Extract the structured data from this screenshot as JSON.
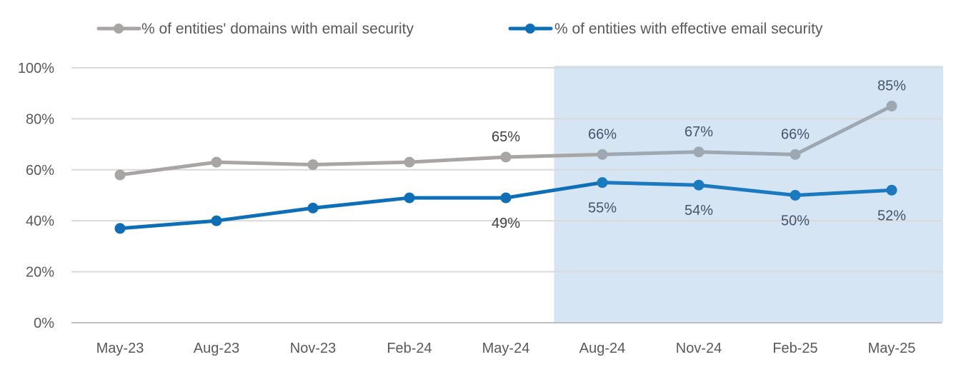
{
  "chart_data": {
    "type": "line",
    "title": "",
    "xlabel": "",
    "ylabel": "",
    "categories": [
      "May-23",
      "Aug-23",
      "Nov-23",
      "Feb-24",
      "May-24",
      "Aug-24",
      "Nov-24",
      "Feb-25",
      "May-25"
    ],
    "ylim": [
      0,
      100
    ],
    "yticks": [
      "0%",
      "20%",
      "40%",
      "60%",
      "80%",
      "100%"
    ],
    "grid": true,
    "legend_position": "top",
    "highlight_range": [
      "Aug-24",
      "May-25"
    ],
    "highlight_color": "#d6e5f4",
    "series": [
      {
        "name": "% of entities' domains with email security",
        "color": "#a8a5a5",
        "highlight_color": "#9ea8b2",
        "values": [
          58,
          63,
          62,
          63,
          65,
          66,
          67,
          66,
          85
        ],
        "data_labels": [
          null,
          null,
          null,
          null,
          "65%",
          "66%",
          "67%",
          "66%",
          "85%"
        ],
        "label_position": "above"
      },
      {
        "name": "% of entities with effective email security",
        "color": "#0f6fb6",
        "highlight_color": "#1a79bf",
        "values": [
          37,
          40,
          45,
          49,
          49,
          55,
          54,
          50,
          52
        ],
        "data_labels": [
          null,
          null,
          null,
          null,
          "49%",
          "55%",
          "54%",
          "50%",
          "52%"
        ],
        "label_position": "below"
      }
    ]
  }
}
